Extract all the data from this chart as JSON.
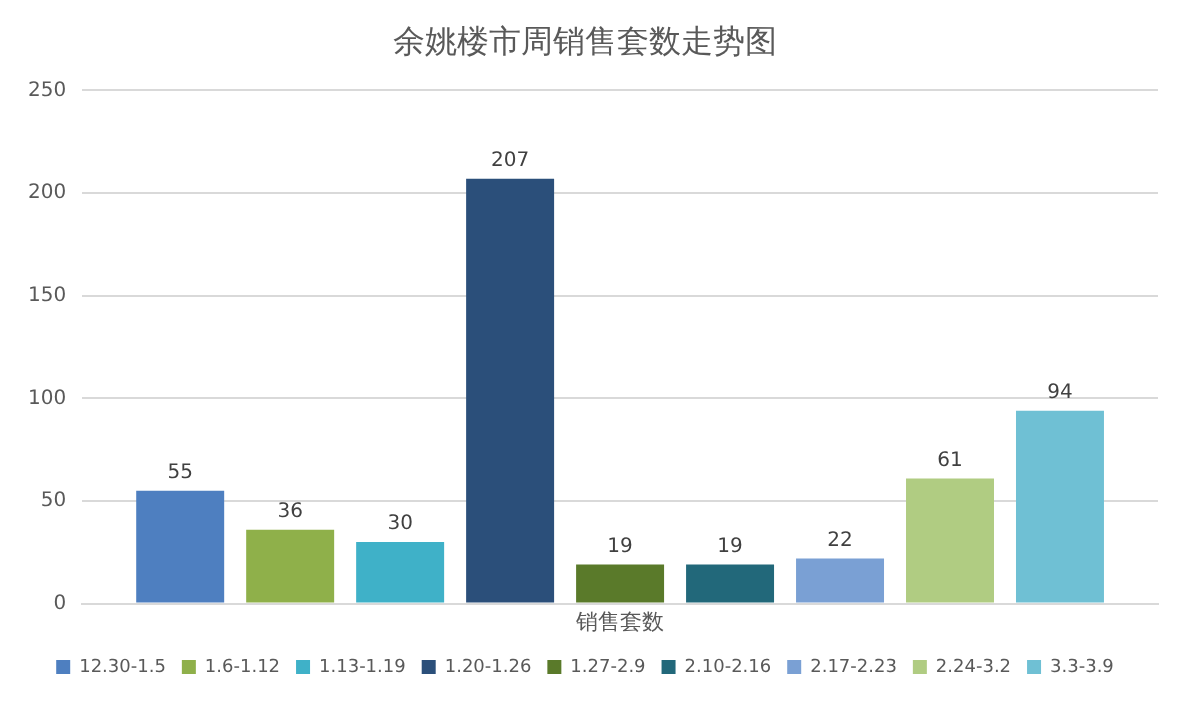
{
  "chart_data": {
    "type": "bar",
    "title": "余姚楼市周销售套数走势图",
    "categories": [
      "销售套数"
    ],
    "series": [
      {
        "name": "12.30-1.5",
        "color": "#4e7fc0",
        "values": [
          55
        ]
      },
      {
        "name": "1.6-1.12",
        "color": "#8fb04a",
        "values": [
          36
        ]
      },
      {
        "name": "1.13-1.19",
        "color": "#3fb1c8",
        "values": [
          30
        ]
      },
      {
        "name": "1.20-1.26",
        "color": "#2b4f7a",
        "values": [
          207
        ]
      },
      {
        "name": "1.27-2.9",
        "color": "#5a7a2a",
        "values": [
          19
        ]
      },
      {
        "name": "2.10-2.16",
        "color": "#22687a",
        "values": [
          19
        ]
      },
      {
        "name": "2.17-2.23",
        "color": "#7aa0d4",
        "values": [
          22
        ]
      },
      {
        "name": "2.24-3.2",
        "color": "#b0cc82",
        "values": [
          61
        ]
      },
      {
        "name": "3.3-3.9",
        "color": "#6fc0d4",
        "values": [
          94
        ]
      }
    ],
    "ylim": [
      0,
      250
    ],
    "yticks": [
      0,
      50,
      100,
      150,
      200,
      250
    ],
    "grid": "y",
    "legend": "bottom",
    "data_labels": true
  }
}
